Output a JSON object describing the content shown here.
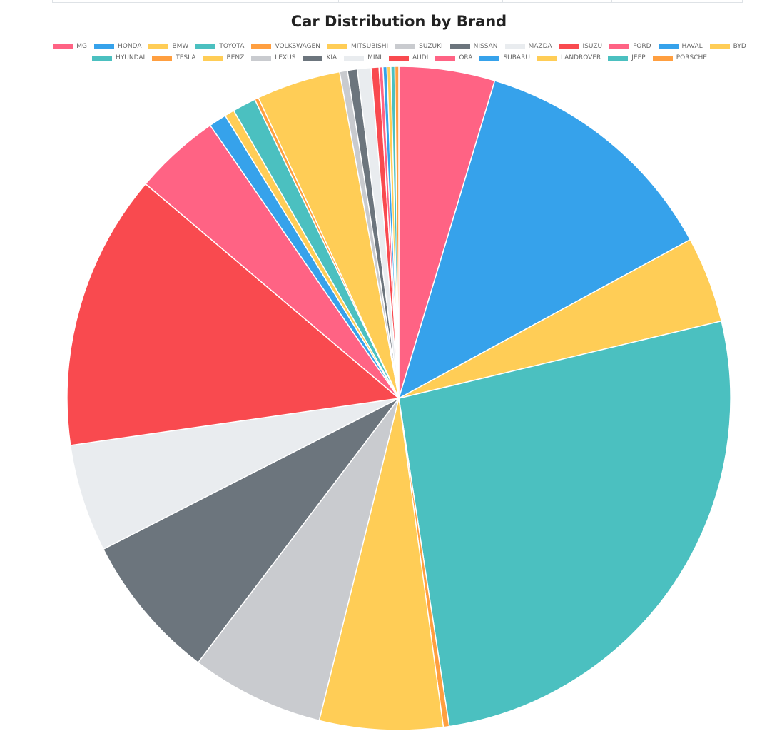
{
  "chart_data": {
    "type": "pie",
    "title": "Car Distribution by Brand",
    "legend_position": "top",
    "categories": [
      "MG",
      "HONDA",
      "BMW",
      "TOYOTA",
      "VOLKSWAGEN",
      "MITSUBISHI",
      "SUZUKI",
      "NISSAN",
      "MAZDA",
      "ISUZU",
      "FORD",
      "HAVAL",
      "BYD",
      "HYUNDAI",
      "TESLA",
      "BENZ",
      "LEXUS",
      "KIA",
      "MINI",
      "AUDI",
      "ORA",
      "SUBARU",
      "LANDROVER",
      "JEEP",
      "PORSCHE"
    ],
    "values": [
      4.9,
      13.0,
      4.4,
      27.6,
      0.3,
      6.3,
      6.8,
      7.5,
      5.5,
      14.1,
      4.4,
      0.9,
      0.5,
      1.2,
      0.2,
      4.3,
      0.4,
      0.5,
      0.7,
      0.4,
      0.2,
      0.2,
      0.2,
      0.2,
      0.2
    ],
    "colors": [
      "#ff6384",
      "#36a2eb",
      "#ffcd56",
      "#4bc0c0",
      "#ff9f40",
      "#ffcd56",
      "#c9cbcf",
      "#6c757d",
      "#e9ecef",
      "#f94a4f",
      "#ff6384",
      "#36a2eb",
      "#ffcd56",
      "#4bc0c0",
      "#ff9f40",
      "#ffcd56",
      "#c9cbcf",
      "#6c757d",
      "#e9ecef",
      "#f94a4f",
      "#ff6384",
      "#36a2eb",
      "#ffcd56",
      "#4bc0c0",
      "#ff9f40"
    ]
  }
}
